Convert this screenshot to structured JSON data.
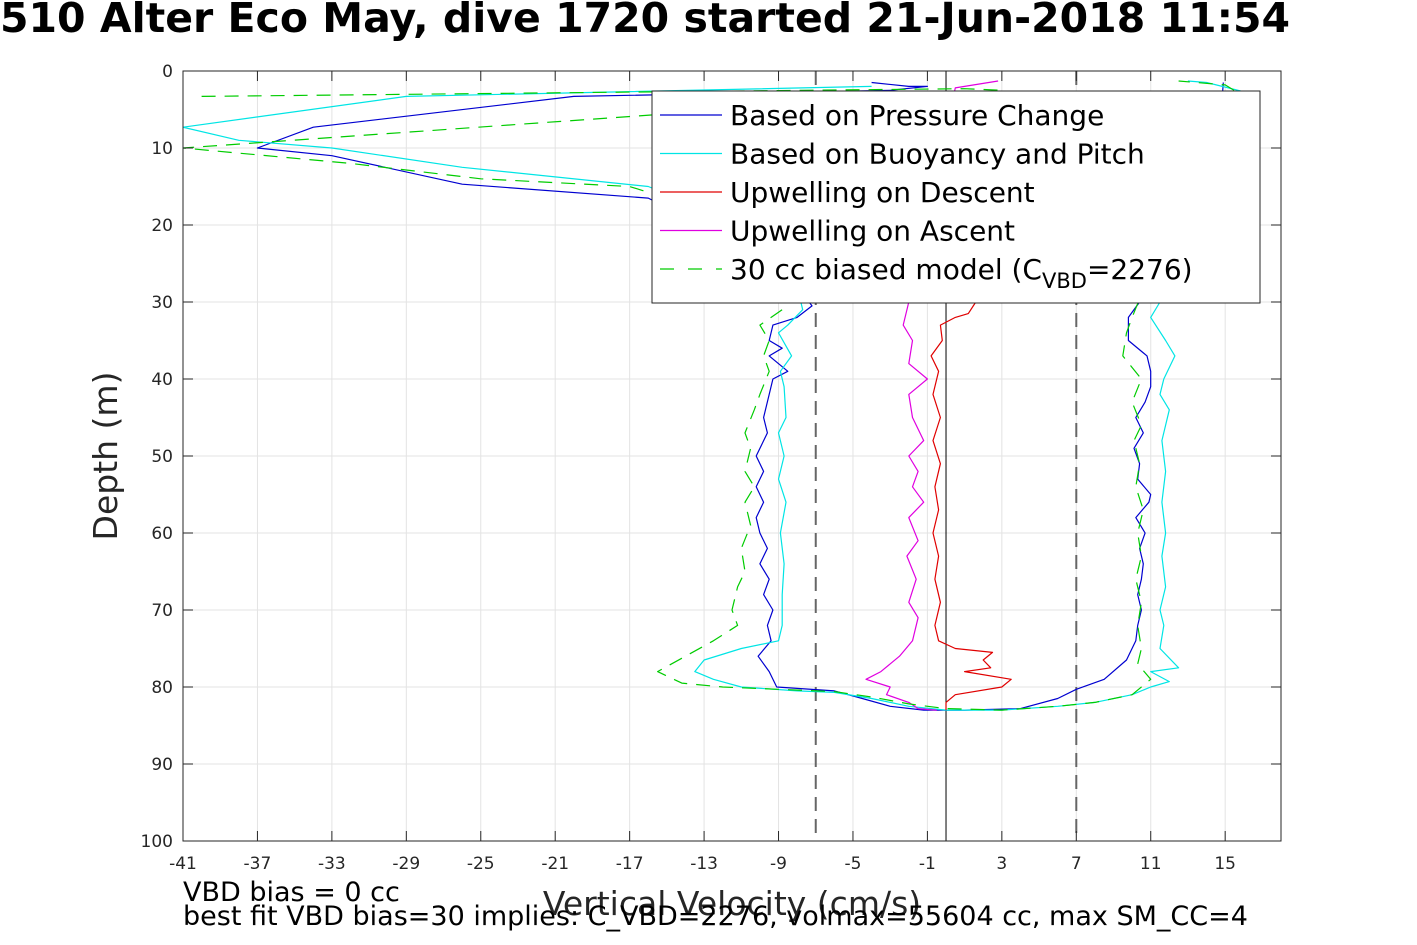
{
  "title": "510 Alter Eco May, dive 1720 started 21-Jun-2018 11:54",
  "footer": {
    "line1": "VBD bias = 0 cc",
    "line2": "best fit VBD bias=30 implies: C_VBD=2276, volmax=55604 cc, max SM_CC=4"
  },
  "chart_data": {
    "type": "line",
    "xlabel": "Vertical Velocity (cm/s)",
    "ylabel": "Depth (m)",
    "xlim": [
      -41,
      18
    ],
    "ylim": [
      0,
      100
    ],
    "y_reversed": true,
    "xticks": [
      -41,
      -37,
      -33,
      -29,
      -25,
      -21,
      -17,
      -13,
      -9,
      -5,
      -1,
      3,
      7,
      11,
      15
    ],
    "yticks": [
      0,
      10,
      20,
      30,
      40,
      50,
      60,
      70,
      80,
      90,
      100
    ],
    "grid": true,
    "legend": {
      "position": "top-right",
      "entries": [
        {
          "label": "Based on Pressure Change",
          "color": "#0000d0",
          "dash": "solid"
        },
        {
          "label": "Based on Buoyancy and Pitch",
          "color": "#00e5e5",
          "dash": "solid"
        },
        {
          "label": "Upwelling on Descent",
          "color": "#e00000",
          "dash": "solid"
        },
        {
          "label": "Upwelling on Ascent",
          "color": "#e000e0",
          "dash": "solid"
        },
        {
          "label_prefix": "30 cc biased model (C",
          "label_sub": "VBD",
          "label_suffix": "=2276)",
          "color": "#00cc00",
          "dash": "dashed"
        }
      ]
    },
    "reference_lines": [
      {
        "x": -7,
        "style": "dashed",
        "color": "#666666"
      },
      {
        "x": 7,
        "style": "dashed",
        "color": "#666666"
      },
      {
        "x": 0,
        "style": "solid",
        "color": "#000000"
      }
    ],
    "series": [
      {
        "name": "Based on Pressure Change",
        "color": "#0000d0",
        "dash": "solid",
        "points": [
          [
            -4,
            1.5
          ],
          [
            -2,
            2
          ],
          [
            -1,
            2
          ],
          [
            -3,
            2.5
          ],
          [
            -20,
            3.3
          ],
          [
            -34,
            7.3
          ],
          [
            -37,
            10
          ],
          [
            -33,
            11
          ],
          [
            -26,
            14.7
          ],
          [
            -16,
            16.5
          ],
          [
            -14,
            19
          ],
          [
            -12,
            22
          ],
          [
            -9,
            25
          ],
          [
            -8.3,
            27
          ],
          [
            -7.2,
            30.5
          ],
          [
            -8,
            32
          ],
          [
            -9.3,
            33
          ],
          [
            -9.5,
            35
          ],
          [
            -8.8,
            36
          ],
          [
            -9.5,
            37
          ],
          [
            -8.5,
            39
          ],
          [
            -9.3,
            40
          ],
          [
            -9.5,
            42
          ],
          [
            -9.8,
            45
          ],
          [
            -9.6,
            47
          ],
          [
            -10.2,
            50
          ],
          [
            -9.8,
            52
          ],
          [
            -10.2,
            54
          ],
          [
            -9.8,
            56
          ],
          [
            -10.2,
            58
          ],
          [
            -10,
            60
          ],
          [
            -9.6,
            62
          ],
          [
            -10,
            64
          ],
          [
            -9.5,
            66
          ],
          [
            -9.8,
            68
          ],
          [
            -9.3,
            70
          ],
          [
            -9.6,
            72
          ],
          [
            -9.4,
            74
          ],
          [
            -10.1,
            76
          ],
          [
            -9.5,
            78
          ],
          [
            -9.1,
            80
          ],
          [
            -6,
            80.5
          ],
          [
            -4.5,
            81.5
          ],
          [
            -3,
            82.5
          ],
          [
            -1.2,
            83
          ],
          [
            1,
            83
          ],
          [
            4,
            82.8
          ],
          [
            6,
            81.5
          ],
          [
            7,
            80.3
          ],
          [
            8.5,
            79
          ],
          [
            9.7,
            76.5
          ],
          [
            10.2,
            74
          ],
          [
            10.3,
            72
          ],
          [
            10.5,
            70
          ],
          [
            10.3,
            68
          ],
          [
            10.5,
            66
          ],
          [
            10.6,
            64
          ],
          [
            10.4,
            62
          ],
          [
            10.7,
            60
          ],
          [
            10.2,
            58
          ],
          [
            10.9,
            56
          ],
          [
            11,
            55
          ],
          [
            10.3,
            53
          ],
          [
            10.4,
            51
          ],
          [
            10.1,
            49
          ],
          [
            10.6,
            47
          ],
          [
            10.2,
            45
          ],
          [
            10.7,
            43
          ],
          [
            11,
            41
          ],
          [
            11,
            39
          ],
          [
            10.8,
            37
          ],
          [
            9.8,
            35
          ],
          [
            9.8,
            32
          ],
          [
            10.4,
            30
          ],
          [
            11.3,
            27
          ],
          [
            12,
            24
          ],
          [
            13,
            20
          ],
          [
            14,
            15
          ],
          [
            14.5,
            10
          ],
          [
            14.8,
            5
          ],
          [
            14.9,
            1.5
          ]
        ]
      },
      {
        "name": "Based on Buoyancy and Pitch",
        "color": "#00e5e5",
        "dash": "solid",
        "points": [
          [
            -4,
            2
          ],
          [
            -29,
            3.3
          ],
          [
            -41,
            7.3
          ],
          [
            -38,
            9
          ],
          [
            -33,
            10
          ],
          [
            -26,
            12.5
          ],
          [
            -16,
            15
          ],
          [
            -13,
            18
          ],
          [
            -11,
            22
          ],
          [
            -9,
            25
          ],
          [
            -8,
            28
          ],
          [
            -7.7,
            31
          ],
          [
            -8.5,
            33
          ],
          [
            -9,
            34
          ],
          [
            -8.3,
            37
          ],
          [
            -8.9,
            39
          ],
          [
            -8.7,
            41
          ],
          [
            -8.6,
            45
          ],
          [
            -9,
            47
          ],
          [
            -8.7,
            50
          ],
          [
            -9,
            53
          ],
          [
            -8.6,
            56
          ],
          [
            -8.9,
            60
          ],
          [
            -8.7,
            64
          ],
          [
            -8.8,
            68
          ],
          [
            -8.8,
            72
          ],
          [
            -9,
            74
          ],
          [
            -11,
            75
          ],
          [
            -13,
            76.5
          ],
          [
            -13.5,
            78
          ],
          [
            -12.5,
            79
          ],
          [
            -11,
            80
          ],
          [
            -8,
            80.5
          ],
          [
            -6,
            80.7
          ],
          [
            -4,
            81.5
          ],
          [
            -2,
            82.5
          ],
          [
            0,
            83
          ],
          [
            3,
            83
          ],
          [
            6,
            82.5
          ],
          [
            8,
            82
          ],
          [
            10,
            81
          ],
          [
            11,
            80
          ],
          [
            12,
            79.3
          ],
          [
            11,
            78
          ],
          [
            12.5,
            77.5
          ],
          [
            11.5,
            75
          ],
          [
            11.7,
            72
          ],
          [
            11.5,
            70
          ],
          [
            11.8,
            67
          ],
          [
            11.6,
            63
          ],
          [
            11.8,
            60
          ],
          [
            11.6,
            56
          ],
          [
            11.8,
            52
          ],
          [
            11.6,
            48
          ],
          [
            12,
            44
          ],
          [
            11.5,
            42
          ],
          [
            11.7,
            40
          ],
          [
            12.3,
            37
          ],
          [
            11.8,
            35
          ],
          [
            11,
            32
          ],
          [
            11.5,
            30
          ],
          [
            12,
            26
          ],
          [
            12.8,
            22
          ],
          [
            13.5,
            18
          ],
          [
            14.5,
            13
          ],
          [
            15.5,
            8
          ],
          [
            16.3,
            4
          ],
          [
            16.5,
            3
          ],
          [
            14,
            1.5
          ],
          [
            13,
            1.3
          ]
        ]
      },
      {
        "name": "Upwelling on Descent",
        "color": "#e00000",
        "dash": "solid",
        "points": [
          [
            1.6,
            30
          ],
          [
            1.2,
            31.5
          ],
          [
            0.5,
            32
          ],
          [
            -0.3,
            33
          ],
          [
            -0.2,
            35
          ],
          [
            -0.8,
            37
          ],
          [
            -0.4,
            39
          ],
          [
            -0.7,
            42
          ],
          [
            -0.3,
            45
          ],
          [
            -0.7,
            48
          ],
          [
            -0.3,
            51
          ],
          [
            -0.6,
            54
          ],
          [
            -0.4,
            57
          ],
          [
            -0.7,
            60
          ],
          [
            -0.4,
            63
          ],
          [
            -0.6,
            66
          ],
          [
            -0.3,
            69
          ],
          [
            -0.6,
            72
          ],
          [
            -0.4,
            74
          ],
          [
            0.5,
            75
          ],
          [
            2.5,
            75.5
          ],
          [
            2,
            76.5
          ],
          [
            2.4,
            77.5
          ],
          [
            1,
            78
          ],
          [
            3.5,
            79
          ],
          [
            3,
            80
          ],
          [
            0.5,
            81
          ],
          [
            0,
            82
          ],
          [
            0,
            83
          ]
        ]
      },
      {
        "name": "Upwelling on Ascent",
        "color": "#e000e0",
        "dash": "solid",
        "points": [
          [
            2.8,
            1.3
          ],
          [
            1.5,
            1.8
          ],
          [
            0.5,
            2.2
          ],
          [
            -2,
            30
          ],
          [
            -2.3,
            33
          ],
          [
            -1.8,
            35
          ],
          [
            -2,
            38
          ],
          [
            -1,
            40
          ],
          [
            -2,
            42
          ],
          [
            -1.8,
            45
          ],
          [
            -1.2,
            48
          ],
          [
            -2,
            50
          ],
          [
            -1.5,
            52
          ],
          [
            -1.8,
            54
          ],
          [
            -1.2,
            56
          ],
          [
            -2,
            58
          ],
          [
            -1.5,
            61
          ],
          [
            -2.1,
            63
          ],
          [
            -1.6,
            66
          ],
          [
            -2,
            69
          ],
          [
            -1.5,
            71
          ],
          [
            -1.8,
            74
          ],
          [
            -2.5,
            76
          ],
          [
            -3.5,
            78
          ],
          [
            -4.3,
            79
          ],
          [
            -3,
            80
          ],
          [
            -3.2,
            81
          ],
          [
            -2,
            82
          ],
          [
            -1.5,
            82.8
          ],
          [
            -0.5,
            83
          ]
        ]
      },
      {
        "name": "30 cc biased model (CVBD=2276)",
        "color": "#00cc00",
        "dash": "dashed",
        "points": [
          [
            -40,
            3.3
          ],
          [
            1,
            2.3
          ],
          [
            3,
            2.5
          ],
          [
            -41,
            10
          ],
          [
            -32,
            12
          ],
          [
            -25,
            14
          ],
          [
            -17,
            15
          ],
          [
            -13,
            18
          ],
          [
            -11,
            22
          ],
          [
            -10,
            25
          ],
          [
            -9.3,
            28
          ],
          [
            -8.8,
            31
          ],
          [
            -10,
            33
          ],
          [
            -9.5,
            35
          ],
          [
            -9.8,
            37
          ],
          [
            -9.5,
            39
          ],
          [
            -10,
            42
          ],
          [
            -10.3,
            44
          ],
          [
            -10.8,
            47
          ],
          [
            -10.5,
            49
          ],
          [
            -10.8,
            52
          ],
          [
            -10.3,
            54
          ],
          [
            -10.8,
            56
          ],
          [
            -10.5,
            59
          ],
          [
            -11,
            62
          ],
          [
            -10.8,
            65
          ],
          [
            -11.2,
            67
          ],
          [
            -11.5,
            70
          ],
          [
            -11.2,
            72
          ],
          [
            -12.5,
            74
          ],
          [
            -14,
            76
          ],
          [
            -15.5,
            78
          ],
          [
            -14.2,
            79.5
          ],
          [
            -12,
            80
          ],
          [
            -9,
            80.3
          ],
          [
            -6,
            80.6
          ],
          [
            -4,
            81.3
          ],
          [
            -2,
            82.2
          ],
          [
            0,
            82.8
          ],
          [
            3,
            83
          ],
          [
            6,
            82.5
          ],
          [
            8,
            82
          ],
          [
            10,
            81
          ],
          [
            11,
            79
          ],
          [
            10.3,
            77
          ],
          [
            10.5,
            75
          ],
          [
            10.3,
            72
          ],
          [
            10.5,
            69
          ],
          [
            10.2,
            66
          ],
          [
            10.5,
            63
          ],
          [
            10.3,
            60
          ],
          [
            10.6,
            57
          ],
          [
            10.2,
            54
          ],
          [
            10.4,
            51
          ],
          [
            10.1,
            48
          ],
          [
            10.5,
            46
          ],
          [
            10,
            43
          ],
          [
            10.5,
            40
          ],
          [
            9.5,
            37
          ],
          [
            9.7,
            34
          ],
          [
            10,
            32
          ],
          [
            10.5,
            29
          ],
          [
            11.3,
            25
          ],
          [
            12.5,
            20
          ],
          [
            13.5,
            15
          ],
          [
            14.5,
            10
          ],
          [
            15.5,
            6
          ],
          [
            15.8,
            3
          ],
          [
            15,
            1.8
          ],
          [
            12.5,
            1.3
          ]
        ]
      }
    ]
  }
}
